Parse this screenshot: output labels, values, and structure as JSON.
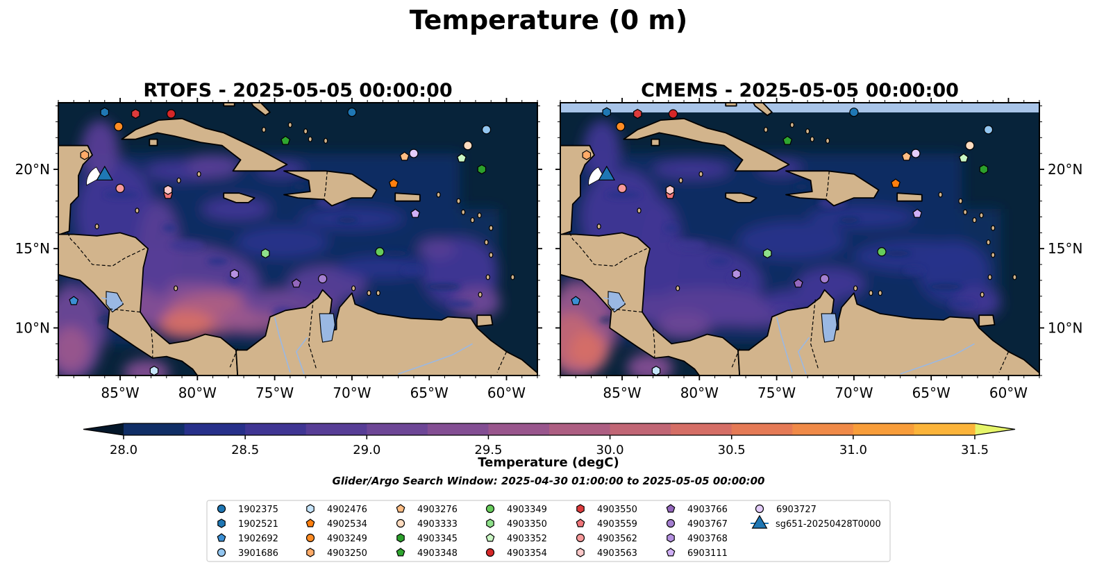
{
  "figure": {
    "suptitle": "Temperature (0 m)",
    "search_window": "Glider/Argo Search Window: 2025-04-30 01:00:00 to 2025-05-05 00:00:00"
  },
  "colors": {
    "land": "#d2b48c",
    "lake": "#9ab8e3",
    "ocean_base": "#07233a",
    "nodata": "#a8c4e8"
  },
  "chart_data": {
    "type": "heatmap",
    "panels": [
      {
        "title": "RTOFS - 2025-05-05 00:00:00"
      },
      {
        "title": "CMEMS - 2025-05-05 00:00:00"
      }
    ],
    "x_ticks": [
      "85°W",
      "80°W",
      "75°W",
      "70°W",
      "65°W",
      "60°W"
    ],
    "x_tick_values": [
      -85,
      -80,
      -75,
      -70,
      -65,
      -60
    ],
    "y_ticks": [
      "20°N",
      "15°N",
      "10°N"
    ],
    "y_tick_values": [
      20,
      15,
      10
    ],
    "xlim": [
      -89,
      -58
    ],
    "ylim": [
      7,
      24.2
    ],
    "colorbar": {
      "label": "Temperature (degC)",
      "ticks": [
        "28.0",
        "28.5",
        "29.0",
        "29.5",
        "30.0",
        "30.5",
        "31.0",
        "31.5"
      ],
      "tick_values": [
        28.0,
        28.5,
        29.0,
        29.5,
        30.0,
        30.5,
        31.0,
        31.5
      ],
      "range": [
        28.0,
        31.5
      ],
      "step": 0.25,
      "colors": [
        "#07233a",
        "#102e66",
        "#27308a",
        "#3f3593",
        "#573d96",
        "#6d4696",
        "#834e93",
        "#99568d",
        "#ad5e82",
        "#c16675",
        "#d56e66",
        "#e57a56",
        "#f08a48",
        "#f89d3a",
        "#fcb43a",
        "#f8cc46",
        "#ede65a"
      ],
      "under_color": "#04172a",
      "over_color": "#e6f56a"
    },
    "floats": [
      {
        "id": "1902375",
        "shape": "circle",
        "color": "#1f77b4",
        "lon": -70.0,
        "lat": 23.6
      },
      {
        "id": "1902521",
        "shape": "hexagon",
        "color": "#1f77b4",
        "lon": -86.0,
        "lat": 23.6
      },
      {
        "id": "1902692",
        "shape": "pentagon",
        "color": "#3b8fd4",
        "lon": -88.0,
        "lat": 11.7
      },
      {
        "id": "3901686",
        "shape": "circle",
        "color": "#93c6f0",
        "lon": -61.3,
        "lat": 22.5
      },
      {
        "id": "4902476",
        "shape": "hexagon",
        "color": "#c6e4fa",
        "lon": -82.8,
        "lat": 7.3
      },
      {
        "id": "4902534",
        "shape": "pentagon",
        "color": "#ff7f0e",
        "lon": -67.3,
        "lat": 19.1
      },
      {
        "id": "4903249",
        "shape": "circle",
        "color": "#ff8c24",
        "lon": -85.1,
        "lat": 22.7
      },
      {
        "id": "4903250",
        "shape": "hexagon",
        "color": "#ffab68",
        "lon": -87.3,
        "lat": 20.9
      },
      {
        "id": "4903276",
        "shape": "pentagon",
        "color": "#ffbd84",
        "lon": -66.6,
        "lat": 20.8
      },
      {
        "id": "4903333",
        "shape": "circle",
        "color": "#ffdcc0",
        "lon": -62.5,
        "lat": 21.5
      },
      {
        "id": "4903345",
        "shape": "hexagon",
        "color": "#2ca02c",
        "lon": -61.6,
        "lat": 20.0
      },
      {
        "id": "4903348",
        "shape": "pentagon",
        "color": "#2fa62f",
        "lon": -74.3,
        "lat": 21.8
      },
      {
        "id": "4903349",
        "shape": "circle",
        "color": "#67cc5b",
        "lon": -68.2,
        "lat": 14.8
      },
      {
        "id": "4903350",
        "shape": "hexagon",
        "color": "#8ee08a",
        "lon": -75.6,
        "lat": 14.7
      },
      {
        "id": "4903352",
        "shape": "pentagon",
        "color": "#caf7c4",
        "lon": -62.9,
        "lat": 20.7
      },
      {
        "id": "4903354",
        "shape": "circle",
        "color": "#d62728",
        "lon": -81.7,
        "lat": 23.5
      },
      {
        "id": "4903550",
        "shape": "hexagon",
        "color": "#dd3b3c",
        "lon": -84.0,
        "lat": 23.5
      },
      {
        "id": "4903559",
        "shape": "pentagon",
        "color": "#f0767a",
        "lon": -81.9,
        "lat": 18.4
      },
      {
        "id": "4903562",
        "shape": "circle",
        "color": "#f7999a",
        "lon": -85.0,
        "lat": 18.8
      },
      {
        "id": "4903563",
        "shape": "hexagon",
        "color": "#fcc9c9",
        "lon": -81.9,
        "lat": 18.7
      },
      {
        "id": "4903766",
        "shape": "pentagon",
        "color": "#9467bd",
        "lon": -73.6,
        "lat": 12.8
      },
      {
        "id": "4903767",
        "shape": "circle",
        "color": "#a47fd0",
        "lon": -71.9,
        "lat": 13.1
      },
      {
        "id": "4903768",
        "shape": "hexagon",
        "color": "#b490e0",
        "lon": -77.6,
        "lat": 13.4
      },
      {
        "id": "6903111",
        "shape": "pentagon",
        "color": "#d0b0f6",
        "lon": -65.9,
        "lat": 17.2
      },
      {
        "id": "6903727",
        "shape": "circle",
        "color": "#e4cdfa",
        "lon": -66.0,
        "lat": 21.0
      }
    ],
    "glider": {
      "id": "sg651-20250428T0000",
      "shape": "triangle",
      "color": "#1f77b4",
      "lon": -86.0,
      "lat": 19.7
    }
  }
}
